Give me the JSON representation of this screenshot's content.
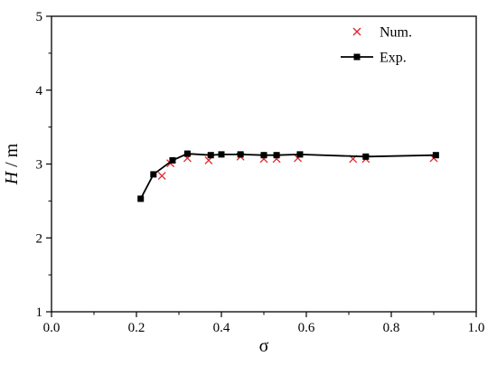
{
  "chart_data": {
    "type": "line",
    "title": "",
    "xlabel": "σ",
    "ylabel": "H / m",
    "xlim": [
      0.0,
      1.0
    ],
    "ylim": [
      1,
      5
    ],
    "xticks": [
      0.0,
      0.2,
      0.4,
      0.6,
      0.8,
      1.0
    ],
    "xtick_labels": [
      "0.0",
      "0.2",
      "0.4",
      "0.6",
      "0.8",
      "1.0"
    ],
    "yticks": [
      1,
      2,
      3,
      4,
      5
    ],
    "ytick_labels": [
      "1",
      "2",
      "3",
      "4",
      "5"
    ],
    "grid": false,
    "legend_position": "top-right",
    "series": [
      {
        "name": "Num.",
        "marker": "x",
        "line": false,
        "color": "#e0242a",
        "x": [
          0.26,
          0.28,
          0.32,
          0.37,
          0.445,
          0.5,
          0.53,
          0.58,
          0.71,
          0.74,
          0.9
        ],
        "y": [
          2.84,
          3.01,
          3.08,
          3.05,
          3.1,
          3.07,
          3.07,
          3.08,
          3.07,
          3.07,
          3.08
        ]
      },
      {
        "name": "Exp.",
        "marker": "square",
        "line": true,
        "color": "#000000",
        "x": [
          0.21,
          0.24,
          0.285,
          0.32,
          0.375,
          0.4,
          0.445,
          0.5,
          0.53,
          0.585,
          0.74,
          0.905
        ],
        "y": [
          2.53,
          2.86,
          3.05,
          3.14,
          3.12,
          3.13,
          3.13,
          3.12,
          3.12,
          3.13,
          3.1,
          3.12
        ]
      }
    ]
  }
}
